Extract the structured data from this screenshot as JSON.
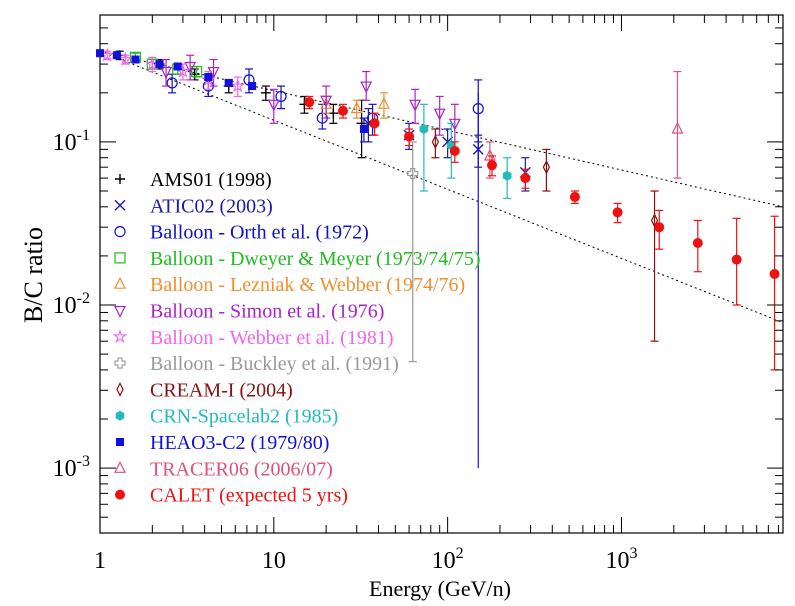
{
  "chart_data": {
    "type": "scatter",
    "xscale": "log",
    "yscale": "log",
    "xlim": [
      1,
      8500
    ],
    "ylim": [
      0.0004,
      0.6
    ],
    "xlabel": "Energy (GeV/n)",
    "ylabel": "B/C ratio",
    "legend_position": "lower-left",
    "x_ticks": [
      {
        "value": 1,
        "base": "1",
        "exp": ""
      },
      {
        "value": 10,
        "base": "10",
        "exp": ""
      },
      {
        "value": 100,
        "base": "10",
        "exp": "2"
      },
      {
        "value": 1000,
        "base": "10",
        "exp": "3"
      }
    ],
    "y_ticks": [
      {
        "value": 0.1,
        "base": "10",
        "exp": "-1"
      },
      {
        "value": 0.01,
        "base": "10",
        "exp": "-2"
      },
      {
        "value": 0.001,
        "base": "10",
        "exp": "-3"
      }
    ],
    "bands": [
      {
        "name": "upper",
        "x": [
          1,
          8500
        ],
        "y": [
          0.36,
          0.04
        ]
      },
      {
        "name": "lower",
        "x": [
          1,
          8500
        ],
        "y": [
          0.36,
          0.0078
        ]
      }
    ],
    "series": [
      {
        "name": "AMS01 (1998)",
        "marker": "plus",
        "color": "#000000",
        "points": [
          [
            1.3,
            0.34,
            0.32,
            0.36
          ],
          [
            2.2,
            0.3,
            0.28,
            0.32
          ],
          [
            3.5,
            0.26,
            0.24,
            0.28
          ],
          [
            5.5,
            0.22,
            0.2,
            0.24
          ],
          [
            9,
            0.2,
            0.18,
            0.22
          ],
          [
            15,
            0.17,
            0.15,
            0.19
          ],
          [
            22,
            0.15,
            0.13,
            0.17
          ],
          [
            32,
            0.13,
            0.08,
            0.18
          ]
        ]
      },
      {
        "name": "ATIC02 (2003)",
        "marker": "x",
        "color": "#1a1aaa",
        "points": [
          [
            35,
            0.13,
            0.1,
            0.16
          ],
          [
            60,
            0.11,
            0.09,
            0.13
          ],
          [
            100,
            0.1,
            0.08,
            0.12
          ],
          [
            150,
            0.09,
            0.07,
            0.11
          ],
          [
            280,
            0.065,
            0.05,
            0.08
          ]
        ]
      },
      {
        "name": "Balloon - Orth et al. (1972)",
        "marker": "circle",
        "color": "#1111cc",
        "points": [
          [
            2.6,
            0.23,
            0.2,
            0.26
          ],
          [
            4.2,
            0.22,
            0.19,
            0.25
          ],
          [
            7.2,
            0.24,
            0.2,
            0.28
          ],
          [
            11,
            0.19,
            0.16,
            0.22
          ],
          [
            19,
            0.14,
            0.12,
            0.17
          ],
          [
            37,
            0.14,
            0.11,
            0.17
          ],
          [
            150,
            0.16,
            0.1,
            0.24
          ]
        ]
      },
      {
        "name": "Balloon - Dweyer & Meyer (1973/74/75)",
        "marker": "square",
        "color": "#22bb22",
        "points": [
          [
            1.6,
            0.33,
            0.31,
            0.35
          ],
          [
            2.0,
            0.3,
            0.28,
            0.32
          ],
          [
            2.8,
            0.28,
            0.26,
            0.3
          ],
          [
            3.6,
            0.27,
            0.25,
            0.29
          ]
        ]
      },
      {
        "name": "Balloon - Lezniak & Webber (1974/76)",
        "marker": "triangle-up",
        "color": "#f09030",
        "points": [
          [
            20,
            0.17,
            0.15,
            0.19
          ],
          [
            30,
            0.16,
            0.14,
            0.18
          ],
          [
            43,
            0.17,
            0.14,
            0.2
          ]
        ]
      },
      {
        "name": "Balloon - Simon et al. (1976)",
        "marker": "triangle-down",
        "color": "#aa22cc",
        "points": [
          [
            2.4,
            0.27,
            0.22,
            0.32
          ],
          [
            3.3,
            0.29,
            0.24,
            0.34
          ],
          [
            4.5,
            0.27,
            0.22,
            0.32
          ],
          [
            10,
            0.17,
            0.13,
            0.21
          ],
          [
            20,
            0.18,
            0.14,
            0.22
          ],
          [
            34,
            0.22,
            0.18,
            0.27
          ],
          [
            65,
            0.17,
            0.13,
            0.21
          ],
          [
            90,
            0.15,
            0.11,
            0.19
          ],
          [
            110,
            0.13,
            0.09,
            0.17
          ]
        ]
      },
      {
        "name": "Balloon - Webber et al. (1981)",
        "marker": "star",
        "color": "#ee66ee",
        "points": [
          [
            1.1,
            0.34,
            0.32,
            0.36
          ],
          [
            1.4,
            0.32,
            0.3,
            0.34
          ],
          [
            2.0,
            0.3,
            0.27,
            0.33
          ],
          [
            3.0,
            0.27,
            0.24,
            0.3
          ],
          [
            4.2,
            0.24,
            0.21,
            0.27
          ],
          [
            6.2,
            0.22,
            0.19,
            0.25
          ]
        ]
      },
      {
        "name": "Balloon - Buckley et al. (1991)",
        "marker": "cross-open",
        "color": "#999999",
        "points": [
          [
            63,
            0.064,
            0.0045,
            0.1
          ]
        ]
      },
      {
        "name": "CREAM-I (2004)",
        "marker": "diamond",
        "color": "#881111",
        "points": [
          [
            85,
            0.1,
            0.08,
            0.12
          ],
          [
            370,
            0.07,
            0.05,
            0.09
          ],
          [
            1550,
            0.033,
            0.006,
            0.05
          ]
        ]
      },
      {
        "name": "CRN-Spacelab2 (1985)",
        "marker": "hexagon",
        "color": "#22bbbb",
        "points": [
          [
            73,
            0.12,
            0.05,
            0.17
          ],
          [
            105,
            0.095,
            0.06,
            0.13
          ],
          [
            220,
            0.062,
            0.045,
            0.08
          ]
        ]
      },
      {
        "name": "HEAO3-C2 (1979/80)",
        "marker": "filled-square",
        "color": "#1111dd",
        "points": [
          [
            1.0,
            0.35,
            0.34,
            0.36
          ],
          [
            1.25,
            0.34,
            0.33,
            0.35
          ],
          [
            1.6,
            0.32,
            0.31,
            0.33
          ],
          [
            2.2,
            0.3,
            0.29,
            0.31
          ],
          [
            2.8,
            0.29,
            0.28,
            0.3
          ],
          [
            4.2,
            0.25,
            0.24,
            0.26
          ],
          [
            5.5,
            0.23,
            0.22,
            0.24
          ],
          [
            7.5,
            0.22,
            0.21,
            0.23
          ],
          [
            33,
            0.12,
            0.1,
            0.14
          ],
          [
            150,
            0.0,
            0.001,
            0.2
          ]
        ]
      },
      {
        "name": "TRACER06 (2006/07)",
        "marker": "triangle-up",
        "color": "#e0507a",
        "points": [
          [
            175,
            0.082,
            0.06,
            0.1
          ],
          [
            2100,
            0.12,
            0.06,
            0.27
          ]
        ]
      },
      {
        "name": "CALET (expected 5 yrs)",
        "marker": "filled-circle",
        "color": "#ee1111",
        "points": [
          [
            16,
            0.175,
            0.16,
            0.19
          ],
          [
            25,
            0.155,
            0.14,
            0.17
          ],
          [
            38,
            0.13,
            0.11,
            0.15
          ],
          [
            60,
            0.108,
            0.095,
            0.12
          ],
          [
            110,
            0.088,
            0.075,
            0.1
          ],
          [
            180,
            0.072,
            0.062,
            0.082
          ],
          [
            280,
            0.06,
            0.052,
            0.068
          ],
          [
            540,
            0.046,
            0.042,
            0.05
          ],
          [
            950,
            0.037,
            0.032,
            0.042
          ],
          [
            1650,
            0.03,
            0.022,
            0.038
          ],
          [
            2750,
            0.024,
            0.016,
            0.033
          ],
          [
            4600,
            0.019,
            0.01,
            0.034
          ],
          [
            7600,
            0.0155,
            0.004,
            0.035
          ]
        ]
      }
    ]
  }
}
